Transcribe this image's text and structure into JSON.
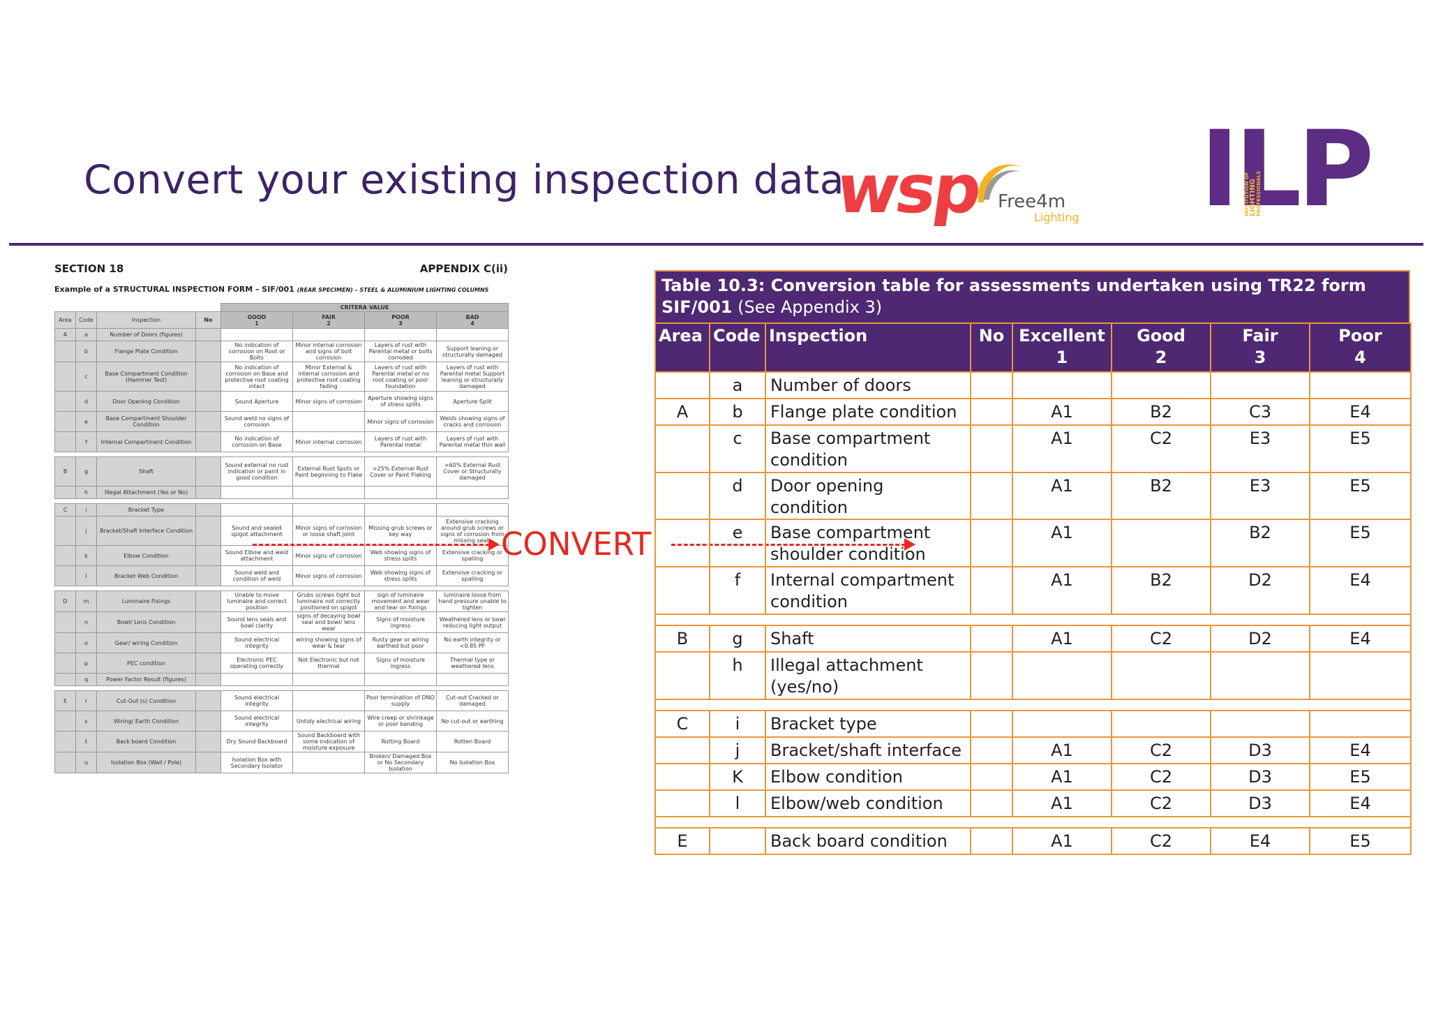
{
  "header": {
    "title": "Convert your existing inspection data",
    "logos": {
      "wsp": "wsp",
      "free4m": "Free4m",
      "free4m_sub": "Lighting",
      "ilp": "ILP",
      "ilp_sub_lines": [
        "INSTITUTION OF",
        "LIGHTING",
        "PROFESSIONALS"
      ]
    }
  },
  "colors": {
    "purple": "#4f2874",
    "orange": "#e8963c",
    "red": "#e8281e"
  },
  "convert_label": "CONVERT",
  "form": {
    "section": "SECTION 18",
    "appendix": "APPENDIX C(ii)",
    "subtitle": "Example of a STRUCTURAL INSPECTION FORM – SIF/001",
    "subtitle_note": "(REAR SPECIMEN) – STEEL & ALUMINIUM LIGHTING COLUMNS",
    "criteria": "CRITERA VALUE",
    "headers": {
      "area": "Area",
      "code": "Code",
      "inspection": "Inspection",
      "no": "No",
      "good": "GOOD",
      "good_n": "1",
      "fair": "FAIR",
      "fair_n": "2",
      "poor": "POOR",
      "poor_n": "3",
      "bad": "BAD",
      "bad_n": "4"
    },
    "rows": [
      {
        "area": "A",
        "code": "a",
        "insp": "Number of Doors (figures)",
        "good": "",
        "fair": "",
        "poor": "",
        "bad": ""
      },
      {
        "area": "",
        "code": "b",
        "insp": "Flange Plate Condition",
        "good": "No indication of corrosion on Root or Bolts",
        "fair": "Minor internal corrosion and signs of bolt corrosion",
        "poor": "Layers of rust with Parental metal or bolts corroded",
        "bad": "Support leaning or structurally damaged"
      },
      {
        "area": "",
        "code": "c",
        "insp": "Base Compartment Condition (Hammer Test)",
        "good": "No indication of corrosion on Base and protective root coating intact",
        "fair": "Minor External & internal corrosion and protective root coating fading",
        "poor": "Layers of rust with Parental metal or no root coating or poor foundation",
        "bad": "Layers of rust with Parental metal Support leaning or structurally damaged"
      },
      {
        "area": "",
        "code": "d",
        "insp": "Door Opening Condition",
        "good": "Sound Aperture",
        "fair": "Minor signs of corrosion",
        "poor": "Aperture showing signs of stress splits",
        "bad": "Aperture Split"
      },
      {
        "area": "",
        "code": "e",
        "insp": "Base Compartment Shoulder Condition",
        "good": "Sound weld no signs of corrosion",
        "fair": "",
        "poor": "Minor signs of corrosion",
        "bad": "Welds showing signs of cracks and corrosion"
      },
      {
        "area": "",
        "code": "f",
        "insp": "Internal Compartment Condition",
        "good": "No indication of corrosion on Base",
        "fair": "Minor internal corrosion",
        "poor": "Layers of rust with Parental metal",
        "bad": "Layers of rust with Parental metal thin wall"
      },
      {
        "sep": true
      },
      {
        "area": "B",
        "code": "g",
        "insp": "Shaft",
        "good": "Sound external no rust indication or paint in good condition",
        "fair": "External Rust Spots or Paint beginning to Flake",
        "poor": ">25% External Rust Cover or Paint Flaking",
        "bad": ">60% External Rust Cover or Structurally damaged"
      },
      {
        "area": "",
        "code": "h",
        "insp": "Illegal Attachment (Yes or No)",
        "good": "",
        "fair": "",
        "poor": "",
        "bad": ""
      },
      {
        "sep": true
      },
      {
        "area": "C",
        "code": "i",
        "insp": "Bracket Type",
        "good": "",
        "fair": "",
        "poor": "",
        "bad": ""
      },
      {
        "area": "",
        "code": "j",
        "insp": "Bracket/Shaft Interface Condition",
        "good": "Sound and sealed spigot attachment",
        "fair": "Minor signs of corrosion or loose shaft joint",
        "poor": "Missing grub screws or key way",
        "bad": "Extensive cracking around grub screws or signs of corrosion from missing seals"
      },
      {
        "area": "",
        "code": "k",
        "insp": "Elbow Condition",
        "good": "Sound Elbow and weld attachment",
        "fair": "Minor signs of corrosion",
        "poor": "Web showing signs of stress splits",
        "bad": "Extensive cracking or spalling"
      },
      {
        "area": "",
        "code": "l",
        "insp": "Bracket Web Condition",
        "good": "Sound weld and condition of weld",
        "fair": "Minor signs of corrosion",
        "poor": "Web showing signs of stress splits",
        "bad": "Extensive cracking or spalling"
      },
      {
        "sep": true
      },
      {
        "area": "D",
        "code": "m",
        "insp": "Luminaire Fixings",
        "good": "Unable to move luminaire and correct position",
        "fair": "Grubs screws tight but luminaire not correctly positioned on spigot",
        "poor": "sign of luminaire movement and wear and tear on fixings",
        "bad": "luminaire loose from hand pressure unable to tighten"
      },
      {
        "area": "",
        "code": "n",
        "insp": "Bowl/ Lens Condition",
        "good": "Sound lens seals and bowl clarity",
        "fair": "signs of decaying bowl seal and bowl/ lens wear",
        "poor": "Signs of moisture ingress",
        "bad": "Weathered lens or bowl reducing light output"
      },
      {
        "area": "",
        "code": "o",
        "insp": "Gear/ wiring Condition",
        "good": "Sound electrical integrity",
        "fair": "wiring showing signs of wear & tear",
        "poor": "Rusty gear or wiring earthed but poor",
        "bad": "No earth integrity or <0.85 PF"
      },
      {
        "area": "",
        "code": "p",
        "insp": "PEC condition",
        "good": "Electronic PEC operating correctly",
        "fair": "Not Electronic but not thermal",
        "poor": "Signs of moisture ingress",
        "bad": "Thermal type or weathered lens"
      },
      {
        "area": "",
        "code": "q",
        "insp": "Power Factor Result (figures)",
        "good": "",
        "fair": "",
        "poor": "",
        "bad": ""
      },
      {
        "sep": true
      },
      {
        "area": "E",
        "code": "r",
        "insp": "Cut-Out (s) Condition",
        "good": "Sound electrical integrity",
        "fair": "",
        "poor": "Poor termination of DNO supply",
        "bad": "Cut-out Cracked or damaged"
      },
      {
        "area": "",
        "code": "s",
        "insp": "Wiring/ Earth Condition",
        "good": "Sound electrical integrity",
        "fair": "Untidy electrical wiring",
        "poor": "Wire creep or shrinkage or poor bonding",
        "bad": "No cut-out or earthing"
      },
      {
        "area": "",
        "code": "t",
        "insp": "Back board Condition",
        "good": "Dry Sound Backboard",
        "fair": "Sound Backboard with some indication of moisture exposure",
        "poor": "Rotting Board",
        "bad": "Rotten Board"
      },
      {
        "area": "",
        "code": "u",
        "insp": "Isolation Box (Wall / Pole)",
        "good": "Isolation Box with Secondary Isolator",
        "fair": "",
        "poor": "Broken/ Damaged Box or No Secondary Isolation",
        "bad": "No Isolation Box"
      }
    ]
  },
  "conversion_table": {
    "title_bold": "Table 10.3: Conversion table for assessments undertaken using TR22 form SIF/001",
    "title_rest": " (See Appendix 3)",
    "headers": {
      "area": "Area",
      "code": "Code",
      "inspection": "Inspection",
      "no": "No",
      "excellent": "Excellent",
      "excellent_n": "1",
      "good": "Good",
      "good_n": "2",
      "fair": "Fair",
      "fair_n": "3",
      "poor": "Poor",
      "poor_n": "4"
    },
    "rows": [
      {
        "area": "",
        "code": "a",
        "insp": "Number of doors",
        "no": "",
        "c1": "",
        "c2": "",
        "c3": "",
        "c4": ""
      },
      {
        "area": "A",
        "code": "b",
        "insp": "Flange plate condition",
        "no": "",
        "c1": "A1",
        "c2": "B2",
        "c3": "C3",
        "c4": "E4"
      },
      {
        "area": "",
        "code": "c",
        "insp": "Base compartment condition",
        "no": "",
        "c1": "A1",
        "c2": "C2",
        "c3": "E3",
        "c4": "E5"
      },
      {
        "area": "",
        "code": "d",
        "insp": "Door opening condition",
        "no": "",
        "c1": "A1",
        "c2": "B2",
        "c3": "E3",
        "c4": "E5"
      },
      {
        "area": "",
        "code": "e",
        "insp": "Base compartment shoulder condition",
        "no": "",
        "c1": "A1",
        "c2": "",
        "c3": "B2",
        "c4": "E5"
      },
      {
        "area": "",
        "code": "f",
        "insp": "Internal compartment condition",
        "no": "",
        "c1": "A1",
        "c2": "B2",
        "c3": "D2",
        "c4": "E4"
      },
      {
        "gap": true
      },
      {
        "area": "B",
        "code": "g",
        "insp": "Shaft",
        "no": "",
        "c1": "A1",
        "c2": "C2",
        "c3": "D2",
        "c4": "E4"
      },
      {
        "area": "",
        "code": "h",
        "insp": "Illegal attachment (yes/no)",
        "no": "",
        "c1": "",
        "c2": "",
        "c3": "",
        "c4": ""
      },
      {
        "gap": true
      },
      {
        "area": "C",
        "code": "i",
        "insp": "Bracket type",
        "no": "",
        "c1": "",
        "c2": "",
        "c3": "",
        "c4": ""
      },
      {
        "area": "",
        "code": "j",
        "insp": "Bracket/shaft interface",
        "no": "",
        "c1": "A1",
        "c2": "C2",
        "c3": "D3",
        "c4": "E4"
      },
      {
        "area": "",
        "code": "K",
        "insp": "Elbow condition",
        "no": "",
        "c1": "A1",
        "c2": "C2",
        "c3": "D3",
        "c4": "E5"
      },
      {
        "area": "",
        "code": "l",
        "insp": "Elbow/web condition",
        "no": "",
        "c1": "A1",
        "c2": "C2",
        "c3": "D3",
        "c4": "E4"
      },
      {
        "gap": true
      },
      {
        "area": "E",
        "code": "",
        "insp": "Back board condition",
        "no": "",
        "c1": "A1",
        "c2": "C2",
        "c3": "E4",
        "c4": "E5"
      }
    ]
  }
}
